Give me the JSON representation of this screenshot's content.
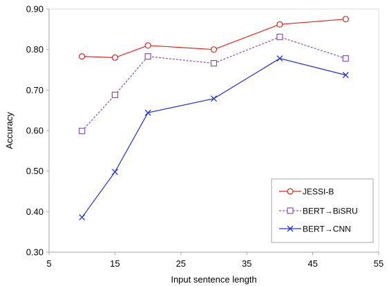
{
  "chart_data": {
    "type": "line",
    "title": "",
    "xlabel": "Input sentence length",
    "ylabel": "Accuracy",
    "xlim": [
      5,
      55
    ],
    "ylim": [
      0.3,
      0.9
    ],
    "x_ticks": [
      "5",
      "15",
      "25",
      "35",
      "45",
      "55"
    ],
    "y_ticks": [
      "0.30",
      "0.40",
      "0.50",
      "0.60",
      "0.70",
      "0.80",
      "0.90"
    ],
    "legend_position": "bottom-right",
    "grid": false,
    "x": [
      10,
      15,
      20,
      30,
      40,
      50
    ],
    "series": [
      {
        "name": "JESSI-B",
        "values": [
          0.783,
          0.78,
          0.81,
          0.8,
          0.862,
          0.875
        ],
        "color": "#e02020",
        "marker": "circle",
        "line": "solid"
      },
      {
        "name": "BERT→BiSRU",
        "values": [
          0.599,
          0.688,
          0.783,
          0.766,
          0.831,
          0.778
        ],
        "color": "#8a4fb0",
        "marker": "square",
        "line": "dashed"
      },
      {
        "name": "BERT→CNN",
        "values": [
          0.386,
          0.498,
          0.644,
          0.679,
          0.778,
          0.737
        ],
        "color": "#1f2fd8",
        "marker": "x",
        "line": "solid"
      }
    ]
  }
}
